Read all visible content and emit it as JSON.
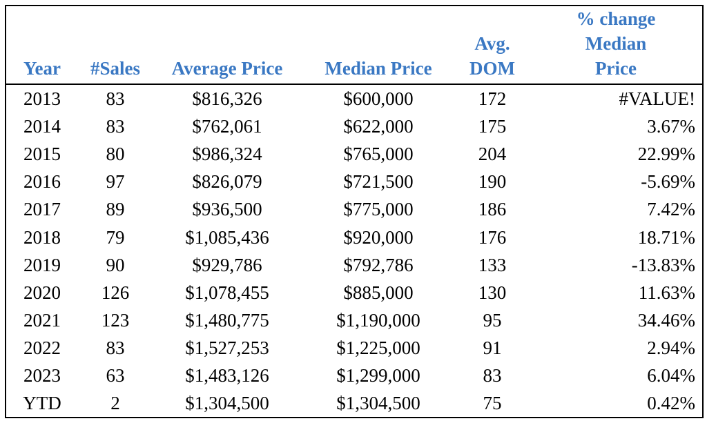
{
  "chart_data": {
    "type": "table",
    "columns": [
      {
        "key": "year",
        "lines": [
          "Year"
        ]
      },
      {
        "key": "sales",
        "lines": [
          "#Sales"
        ]
      },
      {
        "key": "avg_price",
        "lines": [
          "Average Price"
        ]
      },
      {
        "key": "median_price",
        "lines": [
          "Median Price"
        ]
      },
      {
        "key": "dom",
        "lines": [
          "Avg.",
          "DOM"
        ]
      },
      {
        "key": "pct_change",
        "lines": [
          "% change",
          "Median",
          "Price"
        ]
      }
    ],
    "rows": [
      {
        "year": "2013",
        "sales": "83",
        "avg_price": "$816,326",
        "median_price": "$600,000",
        "dom": "172",
        "pct_change": "#VALUE!"
      },
      {
        "year": "2014",
        "sales": "83",
        "avg_price": "$762,061",
        "median_price": "$622,000",
        "dom": "175",
        "pct_change": "3.67%"
      },
      {
        "year": "2015",
        "sales": "80",
        "avg_price": "$986,324",
        "median_price": "$765,000",
        "dom": "204",
        "pct_change": "22.99%"
      },
      {
        "year": "2016",
        "sales": "97",
        "avg_price": "$826,079",
        "median_price": "$721,500",
        "dom": "190",
        "pct_change": "-5.69%"
      },
      {
        "year": "2017",
        "sales": "89",
        "avg_price": "$936,500",
        "median_price": "$775,000",
        "dom": "186",
        "pct_change": "7.42%"
      },
      {
        "year": "2018",
        "sales": "79",
        "avg_price": "$1,085,436",
        "median_price": "$920,000",
        "dom": "176",
        "pct_change": "18.71%"
      },
      {
        "year": "2019",
        "sales": "90",
        "avg_price": "$929,786",
        "median_price": "$792,786",
        "dom": "133",
        "pct_change": "-13.83%"
      },
      {
        "year": "2020",
        "sales": "126",
        "avg_price": "$1,078,455",
        "median_price": "$885,000",
        "dom": "130",
        "pct_change": "11.63%"
      },
      {
        "year": "2021",
        "sales": "123",
        "avg_price": "$1,480,775",
        "median_price": "$1,190,000",
        "dom": "95",
        "pct_change": "34.46%"
      },
      {
        "year": "2022",
        "sales": "83",
        "avg_price": "$1,527,253",
        "median_price": "$1,225,000",
        "dom": "91",
        "pct_change": "2.94%"
      },
      {
        "year": "2023",
        "sales": "63",
        "avg_price": "$1,483,126",
        "median_price": "$1,299,000",
        "dom": "83",
        "pct_change": "6.04%"
      },
      {
        "year": "YTD",
        "sales": "2",
        "avg_price": "$1,304,500",
        "median_price": "$1,304,500",
        "dom": "75",
        "pct_change": "0.42%"
      }
    ],
    "colors": {
      "header_text": "#3a78c3",
      "body_text": "#000000",
      "border": "#000000"
    }
  }
}
